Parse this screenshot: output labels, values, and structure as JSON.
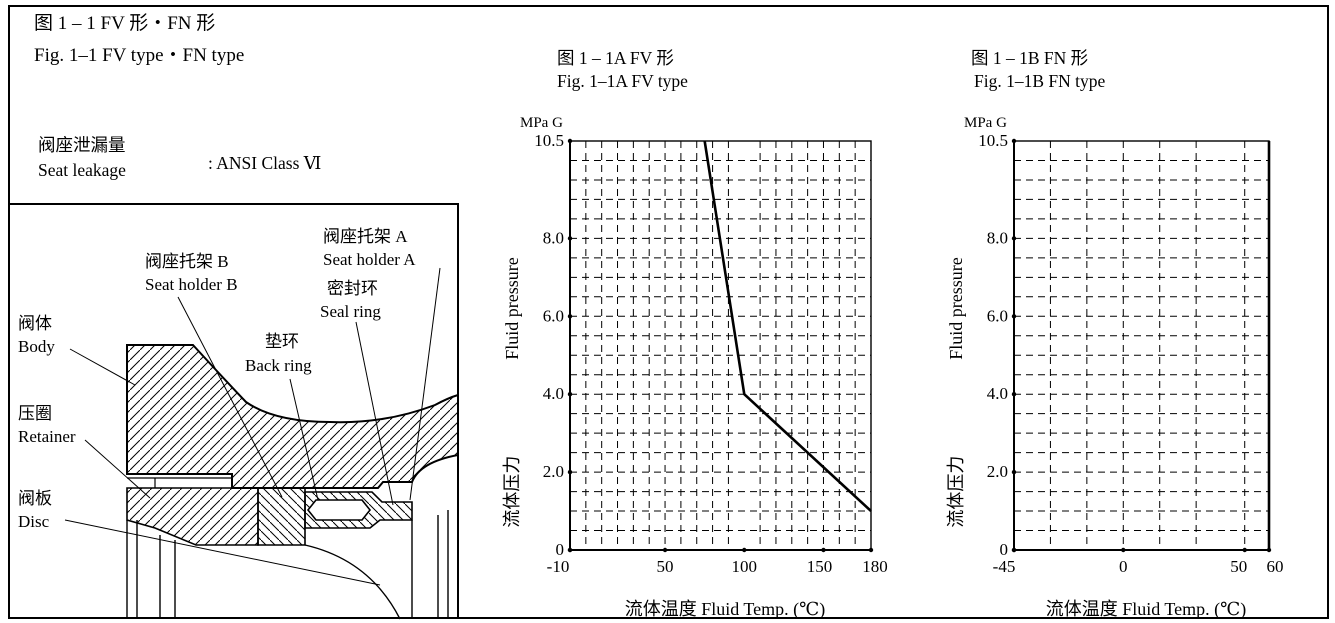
{
  "header": {
    "title_cn": "图 1 – 1   FV 形・FN 形",
    "title_en": "Fig. 1–1   FV type・FN type"
  },
  "spec": {
    "label_cn": "阀座泄漏量",
    "label_en": "Seat leakage",
    "value": ": ANSI Class Ⅵ"
  },
  "drawing": {
    "labels": [
      {
        "cn": "阀体",
        "en": "Body"
      },
      {
        "cn": "压圈",
        "en": "Retainer"
      },
      {
        "cn": "阀板",
        "en": "Disc"
      },
      {
        "cn": "阀座托架 B",
        "en": "Seat holder B"
      },
      {
        "cn": "垫环",
        "en": "Back ring"
      },
      {
        "cn": "阀座托架 A",
        "en": "Seat holder A"
      },
      {
        "cn": "密封环",
        "en": "Seal ring"
      }
    ]
  },
  "chart_data": [
    {
      "type": "line",
      "title_cn": "图 1 – 1A    FV 形",
      "title_en": "Fig. 1–1A    FV type",
      "unit": "MPa G",
      "ylabel_en": "Fluid pressure",
      "ylabel_cn": "流体压力",
      "xlabel": "流体温度   Fluid Temp. (℃)",
      "xlim": [
        -10,
        180
      ],
      "ylim": [
        0,
        10.5
      ],
      "xticks": [
        -10,
        50,
        100,
        150,
        180
      ],
      "xtick_labels": [
        "-10",
        "50",
        "100",
        "150",
        "180"
      ],
      "yticks": [
        0,
        2,
        4,
        6,
        8,
        10.5
      ],
      "ytick_labels": [
        "0",
        "2.0",
        "4.0",
        "6.0",
        "8.0",
        "10.5"
      ],
      "grid": true,
      "series": [
        {
          "x": [
            75,
            100,
            180
          ],
          "y": [
            10.5,
            4.0,
            1.0
          ]
        }
      ]
    },
    {
      "type": "line",
      "title_cn": "图 1 – 1B    FN 形",
      "title_en": "Fig. 1–1B    FN type",
      "unit": "MPa G",
      "ylabel_en": "Fluid pressure",
      "ylabel_cn": "流体压力",
      "xlabel": "流体温度   Fluid Temp. (℃)",
      "xlim": [
        -45,
        60
      ],
      "ylim": [
        0,
        10.5
      ],
      "xticks": [
        -45,
        0,
        50,
        60
      ],
      "xtick_labels": [
        "-45",
        "0",
        "50",
        "60"
      ],
      "yticks": [
        0,
        2,
        4,
        6,
        8,
        10.5
      ],
      "ytick_labels": [
        "0",
        "2.0",
        "4.0",
        "6.0",
        "8.0",
        "10.5"
      ],
      "grid": true,
      "series": [
        {
          "x": [
            60,
            60
          ],
          "y": [
            0,
            10.5
          ]
        }
      ]
    }
  ]
}
